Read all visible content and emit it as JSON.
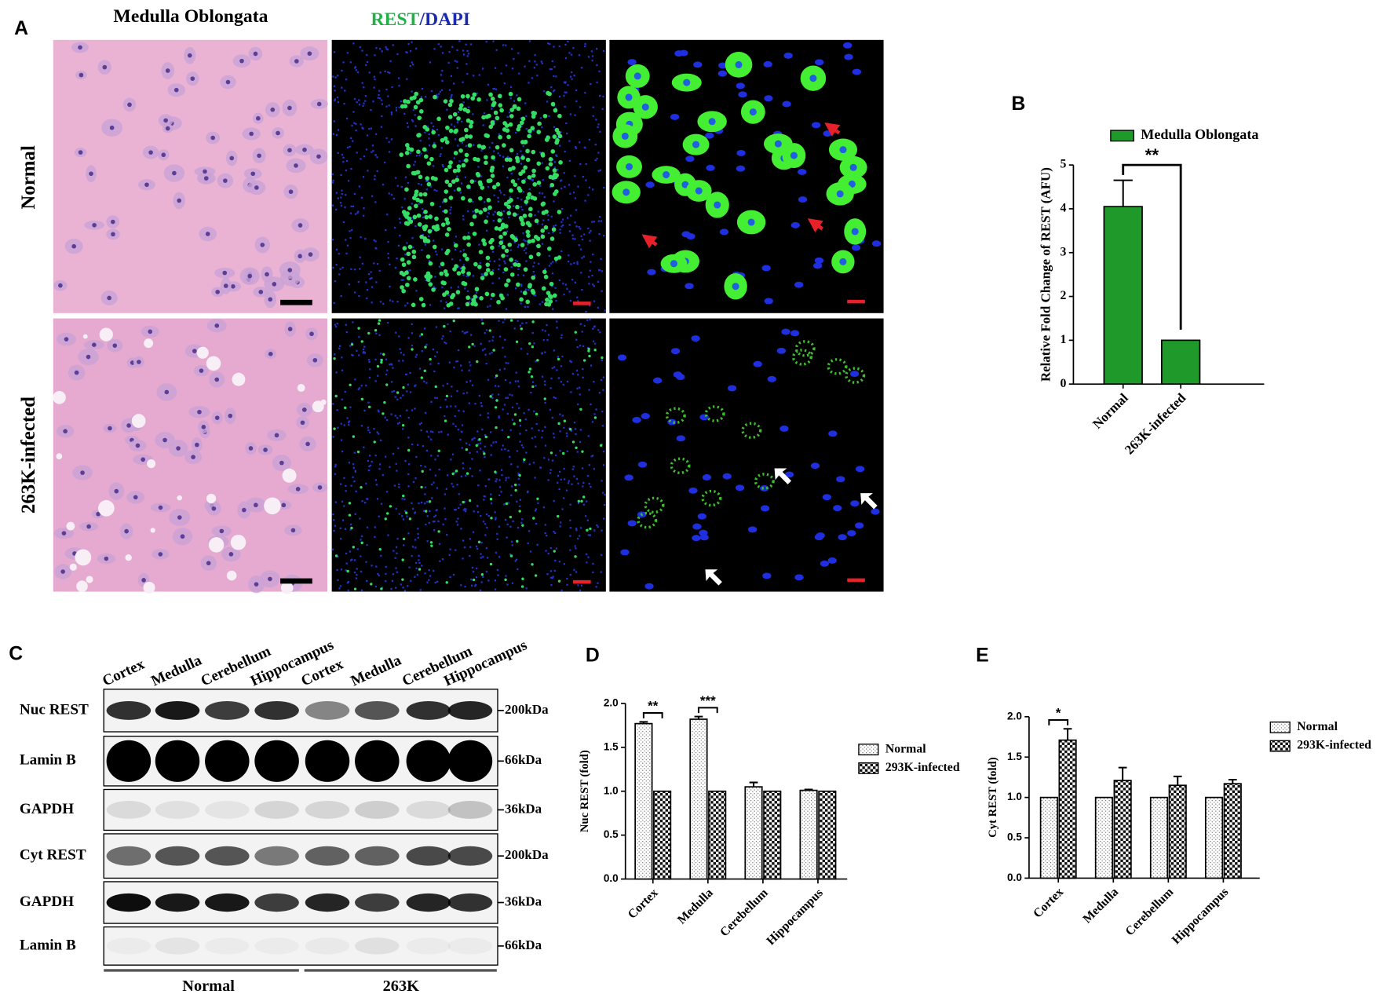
{
  "panel_labels": [
    "A",
    "B",
    "C",
    "D",
    "E"
  ],
  "panel_a": {
    "title": "Medulla Oblongata",
    "stain_parts": [
      "REST",
      "/",
      "DAPI"
    ],
    "rows": [
      "Normal",
      "263K-infected"
    ]
  },
  "panel_c": {
    "lanes": [
      "Cortex",
      "Medulla",
      "Cerebellum",
      "Hippocampus",
      "Cortex",
      "Medulla",
      "Cerebellum",
      "Hippocampus"
    ],
    "rows": [
      {
        "label": "Nuc REST",
        "size": "200kDa"
      },
      {
        "label": "Lamin B",
        "size": "66kDa"
      },
      {
        "label": "GAPDH",
        "size": "36kDa"
      },
      {
        "label": "Cyt REST",
        "size": "200kDa"
      },
      {
        "label": "GAPDH",
        "size": "36kDa"
      },
      {
        "label": "Lamin B",
        "size": "66kDa"
      }
    ],
    "groups": [
      "Normal",
      "263K"
    ]
  },
  "chart_data": [
    {
      "type": "bar",
      "ylabel": "Relative Fold Change of REST (AFU)",
      "categories": [
        "Normal",
        "263K-infected"
      ],
      "series": [
        {
          "name": "Medulla Oblongata",
          "color": "#1f9a2a",
          "values": [
            4.05,
            1.0
          ],
          "errors": [
            0.6,
            null
          ]
        }
      ],
      "ylim": [
        0,
        5
      ],
      "yticks": [
        0,
        1,
        2,
        3,
        4,
        5
      ],
      "significance": "**",
      "legend": "top"
    },
    {
      "type": "bar",
      "ylabel": "Nuc REST (fold)",
      "categories": [
        "Cortex",
        "Medulla",
        "Cerebellum",
        "Hippocampus"
      ],
      "series": [
        {
          "name": "Normal",
          "color": "#ffffff",
          "pattern": "dots",
          "values": [
            1.77,
            1.82,
            1.05,
            1.01
          ],
          "errors": [
            0.02,
            0.03,
            0.05,
            0.01
          ]
        },
        {
          "name": "293K-infected",
          "color": "#ffffff",
          "pattern": "checker",
          "values": [
            1.0,
            1.0,
            1.0,
            1.0
          ],
          "errors": [
            null,
            null,
            null,
            null
          ]
        }
      ],
      "ylim": [
        0,
        2
      ],
      "yticks": [
        {
          "value": 0,
          "label": "0.0"
        },
        0.5,
        {
          "value": 1,
          "label": "1.0"
        },
        1.5,
        {
          "value": 2,
          "label": "2.0"
        }
      ],
      "significance": [
        "**",
        "***",
        null,
        null
      ],
      "legend": "right"
    },
    {
      "type": "bar",
      "ylabel": "Cyt REST (fold)",
      "categories": [
        "Cortex",
        "Medulla",
        "Cerebellum",
        "Hippocampus"
      ],
      "series": [
        {
          "name": "Normal",
          "color": "#ffffff",
          "pattern": "dots",
          "values": [
            1.0,
            1.0,
            1.0,
            1.0
          ],
          "errors": [
            null,
            null,
            null,
            null
          ]
        },
        {
          "name": "293K-infected",
          "color": "#ffffff",
          "pattern": "checker",
          "values": [
            1.71,
            1.21,
            1.15,
            1.17
          ],
          "errors": [
            0.14,
            0.16,
            0.11,
            0.05
          ]
        }
      ],
      "ylim": [
        0,
        2
      ],
      "yticks": [
        {
          "value": 0,
          "label": "0.0"
        },
        0.5,
        {
          "value": 1,
          "label": "1.0"
        },
        1.5,
        {
          "value": 2,
          "label": "2.0"
        }
      ],
      "significance": [
        "*",
        null,
        null,
        null
      ],
      "legend": "right"
    }
  ]
}
